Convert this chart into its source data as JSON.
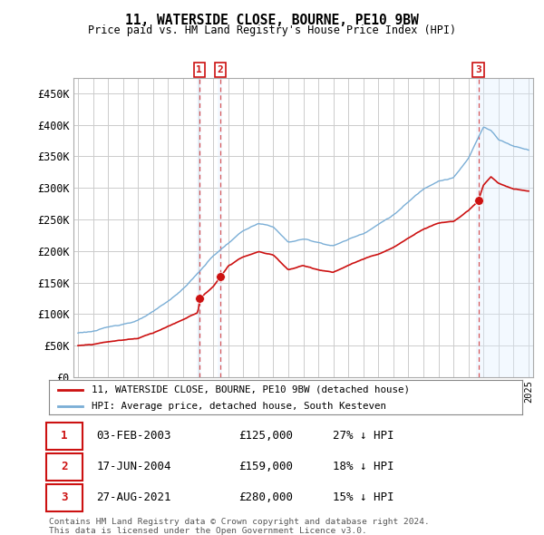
{
  "title": "11, WATERSIDE CLOSE, BOURNE, PE10 9BW",
  "subtitle": "Price paid vs. HM Land Registry's House Price Index (HPI)",
  "ylabel_ticks": [
    "£0",
    "£50K",
    "£100K",
    "£150K",
    "£200K",
    "£250K",
    "£300K",
    "£350K",
    "£400K",
    "£450K"
  ],
  "ytick_values": [
    0,
    50000,
    100000,
    150000,
    200000,
    250000,
    300000,
    350000,
    400000,
    450000
  ],
  "ylim": [
    0,
    475000
  ],
  "xlim_start": 1994.7,
  "xlim_end": 2025.3,
  "hpi_color": "#7aaed6",
  "price_color": "#cc1111",
  "sale_dates": [
    2003.08,
    2004.46,
    2021.65
  ],
  "sale_prices": [
    125000,
    159000,
    280000
  ],
  "sale_labels": [
    "1",
    "2",
    "3"
  ],
  "legend_label_price": "11, WATERSIDE CLOSE, BOURNE, PE10 9BW (detached house)",
  "legend_label_hpi": "HPI: Average price, detached house, South Kesteven",
  "table_data": [
    [
      "1",
      "03-FEB-2003",
      "£125,000",
      "27% ↓ HPI"
    ],
    [
      "2",
      "17-JUN-2004",
      "£159,000",
      "18% ↓ HPI"
    ],
    [
      "3",
      "27-AUG-2021",
      "£280,000",
      "15% ↓ HPI"
    ]
  ],
  "footnote": "Contains HM Land Registry data © Crown copyright and database right 2024.\nThis data is licensed under the Open Government Licence v3.0.",
  "background_color": "#ffffff",
  "grid_color": "#cccccc",
  "vline_color": "#cc1111",
  "highlight_color": "#ddeeff",
  "hpi_knots_x": [
    1995,
    1996,
    1997,
    1998,
    1999,
    2000,
    2001,
    2002,
    2003,
    2004,
    2005,
    2006,
    2007,
    2008,
    2009,
    2010,
    2011,
    2012,
    2013,
    2014,
    2015,
    2016,
    2017,
    2018,
    2019,
    2020,
    2021,
    2021.5,
    2022,
    2022.5,
    2023,
    2024,
    2025
  ],
  "hpi_knots_y": [
    70000,
    73000,
    78000,
    84000,
    90000,
    102000,
    118000,
    138000,
    163000,
    190000,
    210000,
    230000,
    240000,
    235000,
    210000,
    215000,
    210000,
    205000,
    215000,
    225000,
    240000,
    255000,
    275000,
    295000,
    310000,
    315000,
    345000,
    370000,
    395000,
    390000,
    375000,
    365000,
    360000
  ],
  "price_knots_x": [
    1995,
    1996,
    1997,
    1998,
    1999,
    2000,
    2001,
    2002,
    2003,
    2003.08,
    2003.5,
    2004,
    2004.46,
    2004.8,
    2005,
    2006,
    2007,
    2008,
    2009,
    2010,
    2011,
    2012,
    2013,
    2014,
    2015,
    2016,
    2017,
    2018,
    2019,
    2020,
    2021,
    2021.65,
    2022,
    2022.5,
    2023,
    2024,
    2025
  ],
  "price_knots_y": [
    50000,
    52000,
    57000,
    60000,
    63000,
    72000,
    83000,
    93000,
    105000,
    125000,
    135000,
    145000,
    159000,
    170000,
    178000,
    192000,
    200000,
    195000,
    172000,
    178000,
    172000,
    168000,
    178000,
    188000,
    195000,
    205000,
    220000,
    235000,
    245000,
    248000,
    265000,
    280000,
    305000,
    318000,
    308000,
    298000,
    295000
  ]
}
